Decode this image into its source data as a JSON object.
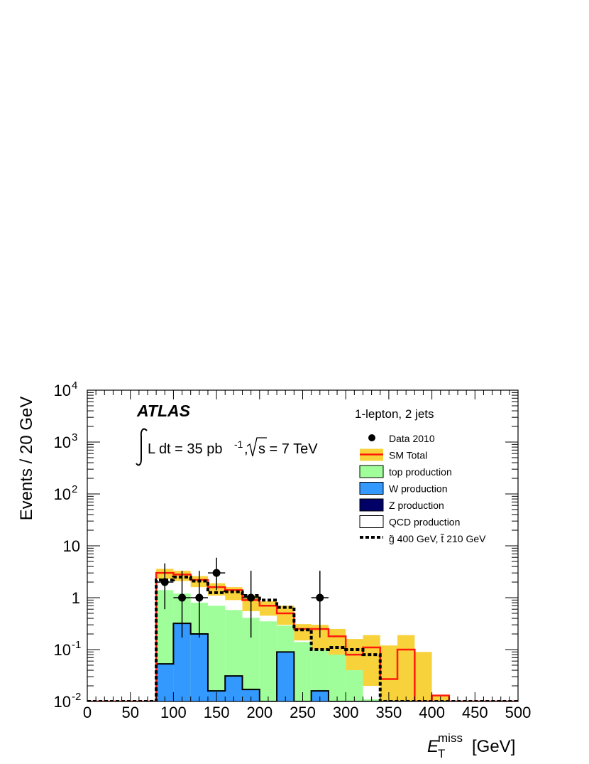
{
  "chart_data": {
    "type": "histogram",
    "experiment": "ATLAS",
    "channel": "1-lepton, 2 jets",
    "lumi_prefix": "L dt = 35 pb",
    "lumi_exp": "-1",
    "energy_text": "s = 7 TeV",
    "ylabel": "Events / 20 GeV",
    "xlabel_main": "E",
    "xlabel_sub": "T",
    "xlabel_sup": "miss",
    "xlabel_unit": "[GeV]",
    "xlim": [
      0,
      500
    ],
    "ylim": [
      0.01,
      10000
    ],
    "y_scale": "log",
    "x_ticks": [
      "0",
      "50",
      "100",
      "150",
      "200",
      "250",
      "300",
      "350",
      "400",
      "450",
      "500"
    ],
    "y_ticks": [
      {
        "value": 0.01,
        "base": "10",
        "exp": "-2"
      },
      {
        "value": 0.1,
        "base": "10",
        "exp": "-1"
      },
      {
        "value": 1,
        "base": "1",
        "exp": ""
      },
      {
        "value": 10,
        "base": "10",
        "exp": ""
      },
      {
        "value": 100,
        "base": "10",
        "exp": "2"
      },
      {
        "value": 1000,
        "base": "10",
        "exp": "3"
      },
      {
        "value": 10000,
        "base": "10",
        "exp": "4"
      }
    ],
    "bin_edges": [
      0,
      20,
      40,
      60,
      80,
      100,
      120,
      140,
      160,
      180,
      200,
      220,
      240,
      260,
      280,
      300,
      320,
      340,
      360,
      380,
      400,
      420,
      440,
      460,
      480,
      500
    ],
    "sm_total": [
      0.01,
      0.01,
      0.01,
      0.01,
      3.0,
      2.8,
      2.2,
      1.6,
      1.4,
      0.9,
      0.7,
      0.5,
      0.25,
      0.25,
      0.18,
      0.08,
      0.11,
      0.027,
      0.1,
      0.01,
      0.013,
      0.01,
      0.01,
      0.01,
      0.01
    ],
    "sm_band_up": [
      0.01,
      0.01,
      0.01,
      0.01,
      3.6,
      3.3,
      2.6,
      1.9,
      1.6,
      1.1,
      0.85,
      0.7,
      0.31,
      0.3,
      0.25,
      0.16,
      0.19,
      0.12,
      0.19,
      0.09,
      0.013,
      0.01,
      0.01,
      0.01,
      0.01
    ],
    "sm_band_down": [
      0.01,
      0.01,
      0.01,
      0.01,
      2.3,
      2.1,
      1.6,
      1.1,
      0.9,
      0.55,
      0.45,
      0.3,
      0.15,
      0.1,
      0.07,
      0.04,
      0.02,
      0.01,
      0.01,
      0.01,
      0.01,
      0.01,
      0.01,
      0.01,
      0.01
    ],
    "top_production": [
      0.01,
      0.01,
      0.01,
      0.01,
      1.4,
      1.2,
      0.8,
      0.7,
      0.58,
      0.41,
      0.35,
      0.29,
      0.14,
      0.1,
      0.08,
      0.04,
      0.011,
      0.01,
      0.01,
      0.01,
      0.01,
      0.01,
      0.01,
      0.01,
      0.01
    ],
    "w_production": [
      0.01,
      0.01,
      0.01,
      0.01,
      0.053,
      0.32,
      0.2,
      0.016,
      0.031,
      0.017,
      0.01,
      0.09,
      0.01,
      0.016,
      0.01,
      0.01,
      0.01,
      0.01,
      0.01,
      0.01,
      0.01,
      0.01,
      0.01,
      0.01,
      0.01
    ],
    "signal": [
      0.01,
      0.01,
      0.01,
      0.01,
      2.2,
      2.5,
      2.1,
      1.25,
      1.3,
      1.1,
      0.9,
      0.65,
      0.24,
      0.1,
      0.11,
      0.1,
      0.08,
      0.01,
      0.01,
      0.01,
      0.01,
      0.01,
      0.01,
      0.01,
      0.01
    ],
    "data_points": [
      {
        "x": 90,
        "y": 2,
        "ylo": 0.6,
        "yhi": 4.6
      },
      {
        "x": 110,
        "y": 1,
        "ylo": 0.17,
        "yhi": 3.3
      },
      {
        "x": 130,
        "y": 1,
        "ylo": 0.17,
        "yhi": 3.3
      },
      {
        "x": 150,
        "y": 3,
        "ylo": 1.4,
        "yhi": 5.9
      },
      {
        "x": 190,
        "y": 1,
        "ylo": 0.17,
        "yhi": 3.3
      },
      {
        "x": 270,
        "y": 1,
        "ylo": 0.17,
        "yhi": 3.3
      }
    ],
    "legend": [
      {
        "label": "Data 2010",
        "style": "marker"
      },
      {
        "label": "SM Total",
        "style": "band"
      },
      {
        "label": "top production",
        "style": "fill-top"
      },
      {
        "label": "W production",
        "style": "fill-w"
      },
      {
        "label": "Z production",
        "style": "fill-z"
      },
      {
        "label": "QCD production",
        "style": "fill-qcd"
      },
      {
        "label": "g̃ 400 GeV, t̃ 210 GeV",
        "style": "dashed"
      }
    ],
    "colors": {
      "band": "#f8d23a",
      "sm_line": "#ff1a0a",
      "top": "#a0fe9a",
      "w": "#3399ff",
      "z": "#000066",
      "qcd": "#ffffff",
      "data": "#000000",
      "signal": "#000000"
    }
  }
}
